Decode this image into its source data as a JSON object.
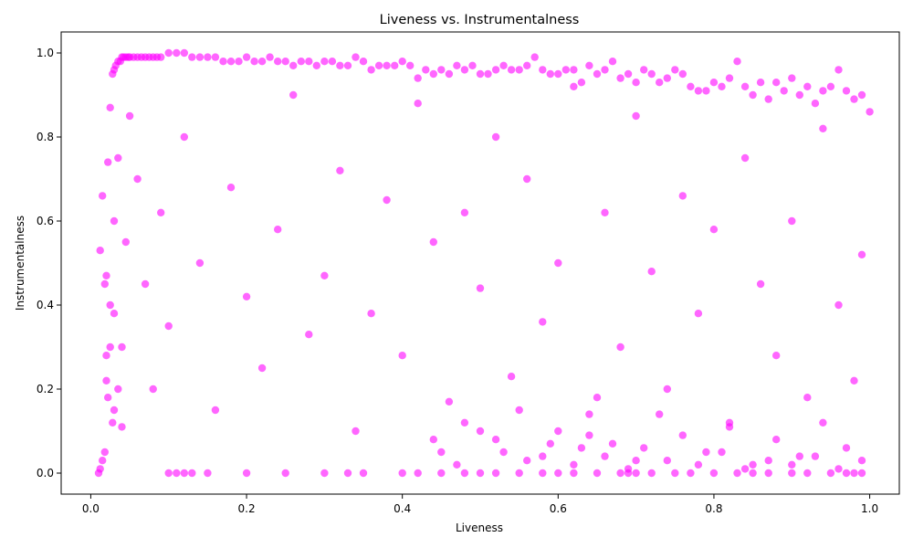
{
  "chart_data": {
    "type": "scatter",
    "title": "Liveness vs. Instrumentalness",
    "xlabel": "Liveness",
    "ylabel": "Instrumentalness",
    "xlim": [
      -0.038,
      1.038
    ],
    "ylim": [
      -0.05,
      1.05
    ],
    "xticks": [
      {
        "value": 0.0,
        "label": "0.0"
      },
      {
        "value": 0.2,
        "label": "0.2"
      },
      {
        "value": 0.4,
        "label": "0.4"
      },
      {
        "value": 0.6,
        "label": "0.6"
      },
      {
        "value": 0.8,
        "label": "0.8"
      },
      {
        "value": 1.0,
        "label": "1.0"
      }
    ],
    "yticks": [
      {
        "value": 0.0,
        "label": "0.0"
      },
      {
        "value": 0.2,
        "label": "0.2"
      },
      {
        "value": 0.4,
        "label": "0.4"
      },
      {
        "value": 0.6,
        "label": "0.6"
      },
      {
        "value": 0.8,
        "label": "0.8"
      },
      {
        "value": 1.0,
        "label": "1.0"
      }
    ],
    "grid": false,
    "legend": "none",
    "marker_color": "#ff00ff",
    "marker_alpha": 0.6,
    "series": [
      {
        "x": [
          0.01,
          0.012,
          0.015,
          0.018,
          0.02,
          0.022,
          0.025,
          0.028,
          0.03,
          0.032,
          0.035,
          0.038,
          0.04,
          0.042,
          0.045,
          0.048,
          0.05,
          0.055,
          0.06,
          0.065,
          0.07,
          0.075,
          0.08,
          0.085,
          0.09,
          0.1,
          0.11,
          0.12,
          0.13,
          0.14,
          0.15,
          0.16,
          0.17,
          0.18,
          0.19,
          0.2,
          0.21,
          0.22,
          0.23,
          0.24,
          0.25,
          0.26,
          0.27,
          0.28,
          0.29,
          0.3,
          0.31,
          0.32,
          0.33,
          0.34,
          0.35,
          0.36,
          0.37,
          0.38,
          0.39,
          0.4,
          0.41,
          0.42,
          0.43,
          0.44,
          0.45,
          0.46,
          0.47,
          0.48,
          0.49,
          0.5,
          0.51,
          0.52,
          0.53,
          0.54,
          0.55,
          0.56,
          0.57,
          0.58,
          0.59,
          0.6,
          0.61,
          0.62,
          0.63,
          0.64,
          0.65,
          0.66,
          0.67,
          0.68,
          0.69,
          0.7,
          0.71,
          0.72,
          0.73,
          0.74,
          0.75,
          0.76,
          0.77,
          0.78,
          0.79,
          0.8,
          0.81,
          0.82,
          0.83,
          0.84,
          0.85,
          0.86,
          0.87,
          0.88,
          0.89,
          0.9,
          0.91,
          0.92,
          0.93,
          0.94,
          0.95,
          0.96,
          0.97,
          0.98,
          0.99,
          1.0,
          0.012,
          0.015,
          0.02,
          0.018,
          0.022,
          0.025,
          0.03,
          0.035,
          0.028,
          0.04,
          0.045,
          0.05,
          0.06,
          0.07,
          0.08,
          0.09,
          0.1,
          0.12,
          0.14,
          0.16,
          0.18,
          0.2,
          0.22,
          0.24,
          0.26,
          0.28,
          0.3,
          0.32,
          0.34,
          0.36,
          0.38,
          0.4,
          0.42,
          0.44,
          0.46,
          0.48,
          0.5,
          0.52,
          0.54,
          0.56,
          0.58,
          0.6,
          0.62,
          0.64,
          0.66,
          0.68,
          0.7,
          0.72,
          0.74,
          0.76,
          0.78,
          0.8,
          0.82,
          0.84,
          0.86,
          0.88,
          0.9,
          0.92,
          0.94,
          0.96,
          0.98,
          0.99,
          0.1,
          0.11,
          0.12,
          0.13,
          0.15,
          0.2,
          0.25,
          0.3,
          0.33,
          0.35,
          0.4,
          0.42,
          0.45,
          0.48,
          0.5,
          0.52,
          0.55,
          0.58,
          0.6,
          0.62,
          0.65,
          0.68,
          0.69,
          0.7,
          0.72,
          0.75,
          0.77,
          0.8,
          0.83,
          0.85,
          0.87,
          0.9,
          0.92,
          0.95,
          0.97,
          0.98,
          0.99,
          0.03,
          0.035,
          0.04,
          0.45,
          0.48,
          0.52,
          0.55,
          0.58,
          0.6,
          0.63,
          0.65,
          0.67,
          0.7,
          0.73,
          0.76,
          0.79,
          0.82,
          0.85,
          0.88,
          0.91,
          0.94,
          0.97,
          0.02,
          0.025,
          0.03,
          0.44,
          0.47,
          0.5,
          0.53,
          0.56,
          0.59,
          0.62,
          0.64,
          0.66,
          0.69,
          0.71,
          0.74,
          0.78,
          0.81,
          0.84,
          0.87,
          0.9,
          0.93,
          0.96,
          0.99
        ],
        "y": [
          0.0,
          0.01,
          0.03,
          0.05,
          0.28,
          0.74,
          0.87,
          0.95,
          0.96,
          0.97,
          0.98,
          0.98,
          0.99,
          0.99,
          0.99,
          0.99,
          0.99,
          0.99,
          0.99,
          0.99,
          0.99,
          0.99,
          0.99,
          0.99,
          0.99,
          1.0,
          1.0,
          1.0,
          0.99,
          0.99,
          0.99,
          0.99,
          0.98,
          0.98,
          0.98,
          0.99,
          0.98,
          0.98,
          0.99,
          0.98,
          0.98,
          0.97,
          0.98,
          0.98,
          0.97,
          0.98,
          0.98,
          0.97,
          0.97,
          0.99,
          0.98,
          0.96,
          0.97,
          0.97,
          0.97,
          0.98,
          0.97,
          0.94,
          0.96,
          0.95,
          0.96,
          0.95,
          0.97,
          0.96,
          0.97,
          0.95,
          0.95,
          0.96,
          0.97,
          0.96,
          0.96,
          0.97,
          0.99,
          0.96,
          0.95,
          0.95,
          0.96,
          0.96,
          0.93,
          0.97,
          0.95,
          0.96,
          0.98,
          0.94,
          0.95,
          0.93,
          0.96,
          0.95,
          0.93,
          0.94,
          0.96,
          0.95,
          0.92,
          0.91,
          0.91,
          0.93,
          0.92,
          0.94,
          0.98,
          0.92,
          0.9,
          0.93,
          0.89,
          0.93,
          0.91,
          0.94,
          0.9,
          0.92,
          0.88,
          0.91,
          0.92,
          0.96,
          0.91,
          0.89,
          0.9,
          0.86,
          0.53,
          0.66,
          0.22,
          0.45,
          0.18,
          0.4,
          0.6,
          0.75,
          0.12,
          0.3,
          0.55,
          0.85,
          0.7,
          0.45,
          0.2,
          0.62,
          0.35,
          0.8,
          0.5,
          0.15,
          0.68,
          0.42,
          0.25,
          0.58,
          0.9,
          0.33,
          0.47,
          0.72,
          0.1,
          0.38,
          0.65,
          0.28,
          0.88,
          0.55,
          0.17,
          0.62,
          0.44,
          0.8,
          0.23,
          0.7,
          0.36,
          0.5,
          0.92,
          0.14,
          0.62,
          0.3,
          0.85,
          0.48,
          0.2,
          0.66,
          0.38,
          0.58,
          0.12,
          0.75,
          0.45,
          0.28,
          0.6,
          0.18,
          0.82,
          0.4,
          0.22,
          0.52,
          0.0,
          0.0,
          0.0,
          0.0,
          0.0,
          0.0,
          0.0,
          0.0,
          0.0,
          0.0,
          0.0,
          0.0,
          0.0,
          0.0,
          0.0,
          0.0,
          0.0,
          0.0,
          0.0,
          0.0,
          0.0,
          0.0,
          0.0,
          0.0,
          0.0,
          0.0,
          0.0,
          0.0,
          0.0,
          0.0,
          0.0,
          0.0,
          0.0,
          0.0,
          0.0,
          0.0,
          0.0,
          0.38,
          0.2,
          0.11,
          0.05,
          0.12,
          0.08,
          0.15,
          0.04,
          0.1,
          0.06,
          0.18,
          0.07,
          0.03,
          0.14,
          0.09,
          0.05,
          0.11,
          0.02,
          0.08,
          0.04,
          0.12,
          0.06,
          0.47,
          0.3,
          0.15,
          0.08,
          0.02,
          0.1,
          0.05,
          0.03,
          0.07,
          0.02,
          0.09,
          0.04,
          0.01,
          0.06,
          0.03,
          0.02,
          0.05,
          0.01,
          0.03,
          0.02,
          0.04,
          0.01,
          0.03
        ]
      }
    ]
  }
}
